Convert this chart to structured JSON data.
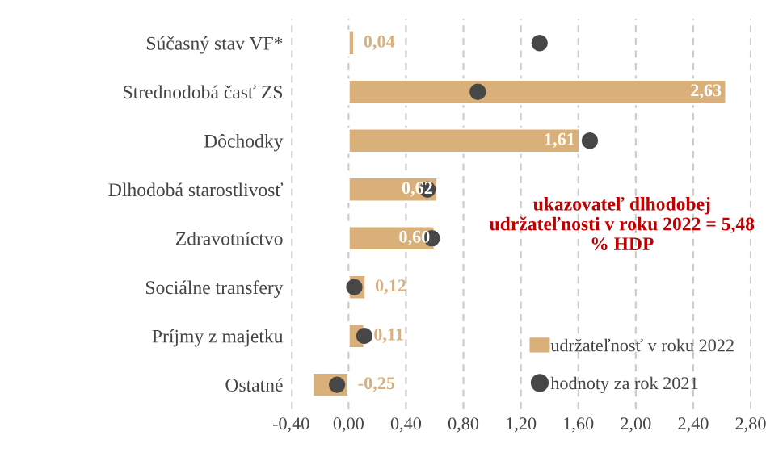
{
  "chart_data": {
    "type": "bar",
    "orientation": "horizontal",
    "categories": [
      "Súčasný stav VF*",
      "Strednodobá časť ZS",
      "Dôchodky",
      "Dlhodobá starostlivosť",
      "Zdravotníctvo",
      "Sociálne transfery",
      "Príjmy z majetku",
      "Ostatné"
    ],
    "series": [
      {
        "name": "udržateľnosť v roku 2022",
        "type": "bar",
        "color": "#d9b07a",
        "values": [
          0.04,
          2.63,
          1.61,
          0.62,
          0.6,
          0.12,
          0.11,
          -0.25
        ],
        "value_labels": [
          "0,04",
          "2,63",
          "1,61",
          "0,62",
          "0,60",
          "0,12",
          "0,11",
          "-0,25"
        ]
      },
      {
        "name": "hodnoty za rok 2021",
        "type": "scatter",
        "color": "#474747",
        "marker": "circle",
        "values": [
          1.33,
          0.9,
          1.68,
          0.55,
          0.58,
          0.04,
          0.11,
          -0.08
        ]
      }
    ],
    "xlim": [
      -0.4,
      2.8
    ],
    "xticks": [
      {
        "value": -0.4,
        "label": "-0,40"
      },
      {
        "value": 0.0,
        "label": "0,00"
      },
      {
        "value": 0.4,
        "label": "0,40"
      },
      {
        "value": 0.8,
        "label": "0,80"
      },
      {
        "value": 1.2,
        "label": "1,20"
      },
      {
        "value": 1.6,
        "label": "1,60"
      },
      {
        "value": 2.0,
        "label": "2,00"
      },
      {
        "value": 2.4,
        "label": "2,40"
      },
      {
        "value": 2.8,
        "label": "2,80"
      }
    ],
    "grid": "x",
    "legend": "bottom right",
    "annotations": [
      "ukazovateľ dlhodobej udržateľnosti v roku 2022 = 5,48 % HDP"
    ]
  }
}
